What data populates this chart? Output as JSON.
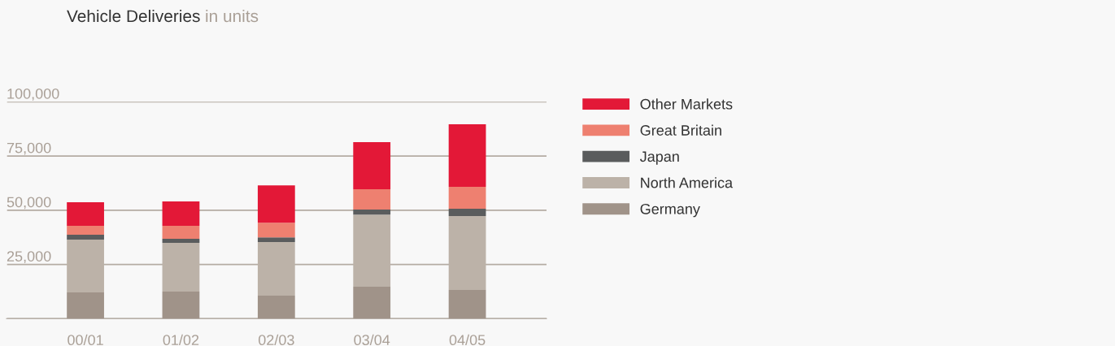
{
  "chart_data": {
    "type": "bar",
    "title": "Vehicle Deliveries",
    "subtitle": "in units",
    "categories": [
      "00/01",
      "01/02",
      "02/03",
      "03/04",
      "04/05"
    ],
    "stacked": true,
    "series": [
      {
        "name": "Germany",
        "color": "#a09389",
        "values": [
          12100,
          12500,
          10600,
          14700,
          13200
        ]
      },
      {
        "name": "North America",
        "color": "#bcb2a8",
        "values": [
          24300,
          22400,
          24700,
          33300,
          34100
        ]
      },
      {
        "name": "Japan",
        "color": "#5a5c5d",
        "values": [
          2300,
          1900,
          2200,
          2300,
          3400
        ]
      },
      {
        "name": "Great Britain",
        "color": "#ee8070",
        "values": [
          4100,
          6000,
          6700,
          9400,
          10100
        ]
      },
      {
        "name": "Other Markets",
        "color": "#e31837",
        "values": [
          10900,
          11200,
          17200,
          21700,
          28800
        ]
      }
    ],
    "ylim": [
      0,
      100000
    ],
    "yticks": [
      {
        "value": 0,
        "label": null
      },
      {
        "value": 25000,
        "label": "25,000"
      },
      {
        "value": 50000,
        "label": "50,000"
      },
      {
        "value": 75000,
        "label": "75,000"
      },
      {
        "value": 100000,
        "label": "100,000"
      }
    ],
    "grid": "y",
    "legend": "right"
  }
}
